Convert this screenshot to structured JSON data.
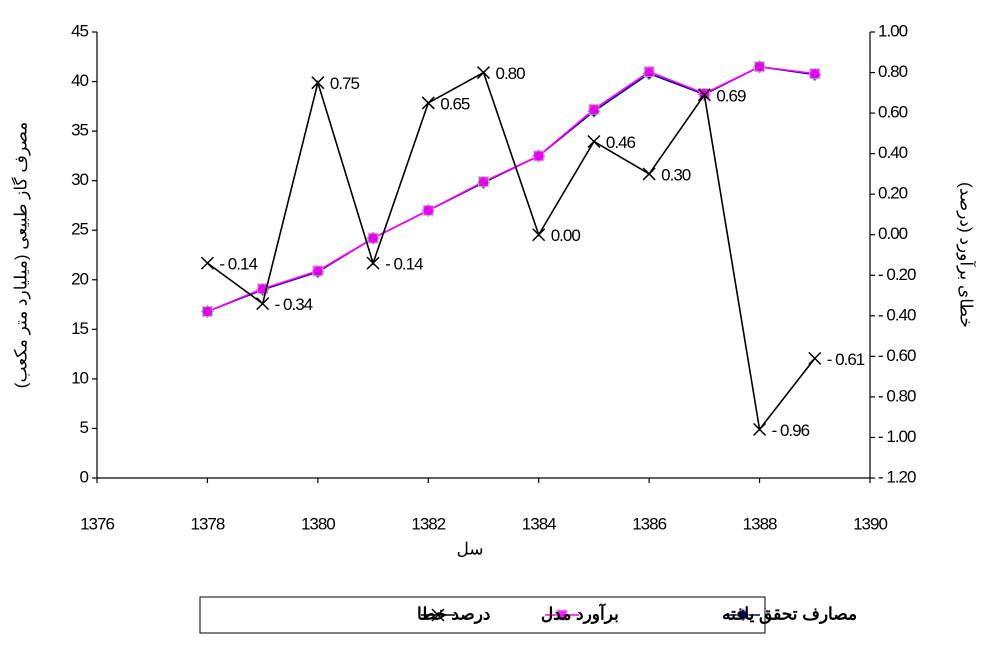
{
  "chart_data": {
    "type": "line",
    "x_label": "سل",
    "y_label": "مصرف گاز طبیعی (میلیارد متر مکعب)",
    "y2_label": "خطای برآورد (درصد)",
    "x": [
      1378,
      1379,
      1380,
      1381,
      1382,
      1383,
      1384,
      1385,
      1386,
      1387,
      1388,
      1389
    ],
    "xlim": [
      1376,
      1390
    ],
    "xticks": [
      1376,
      1378,
      1380,
      1382,
      1384,
      1386,
      1388,
      1390
    ],
    "ylim": [
      0,
      45
    ],
    "yticks": [
      0,
      5,
      10,
      15,
      20,
      25,
      30,
      35,
      40,
      45
    ],
    "y2lim": [
      -1.2,
      1.0
    ],
    "y2ticks": [
      {
        "value": 1.0,
        "label": "1.00"
      },
      {
        "value": 0.8,
        "label": "0.80"
      },
      {
        "value": 0.6,
        "label": "0.60"
      },
      {
        "value": 0.4,
        "label": "0.40"
      },
      {
        "value": 0.2,
        "label": "0.20"
      },
      {
        "value": 0,
        "label": "0.00"
      },
      {
        "value": -0.2,
        "label": "- 0.20"
      },
      {
        "value": -0.4,
        "label": "- 0.40"
      },
      {
        "value": -0.6,
        "label": "- 0.60"
      },
      {
        "value": -0.8,
        "label": "- 0.80"
      },
      {
        "value": -1.0,
        "label": "- 1.00"
      },
      {
        "value": -1.2,
        "label": "- 1.20"
      }
    ],
    "grid": false,
    "legend": "bottom",
    "series": [
      {
        "name": "مصارف تحقق یافته",
        "color": "#000080",
        "marker": "diamond",
        "values": [
          16.8,
          19.0,
          20.8,
          24.2,
          27.0,
          29.8,
          32.5,
          37.0,
          40.8,
          38.7,
          41.5,
          40.7
        ]
      },
      {
        "name": "برآورد مدل",
        "color": "#ff00ff",
        "marker": "square",
        "values": [
          16.8,
          19.1,
          20.9,
          24.2,
          27.0,
          29.9,
          32.5,
          37.2,
          41.0,
          38.8,
          41.5,
          40.8
        ]
      },
      {
        "name": "درصد خطا",
        "color": "#000000",
        "marker": "x",
        "axis": "y2",
        "values": [
          -0.14,
          -0.34,
          0.75,
          -0.14,
          0.65,
          0.8,
          0.0,
          0.46,
          0.3,
          0.69,
          -0.96,
          -0.61
        ],
        "value_labels": [
          "- 0.14",
          "- 0.34",
          "0.75",
          "- 0.14",
          "0.65",
          "0.80",
          "0.00",
          "0.46",
          "0.30",
          "0.69",
          "- 0.96",
          "- 0.61"
        ]
      }
    ]
  }
}
